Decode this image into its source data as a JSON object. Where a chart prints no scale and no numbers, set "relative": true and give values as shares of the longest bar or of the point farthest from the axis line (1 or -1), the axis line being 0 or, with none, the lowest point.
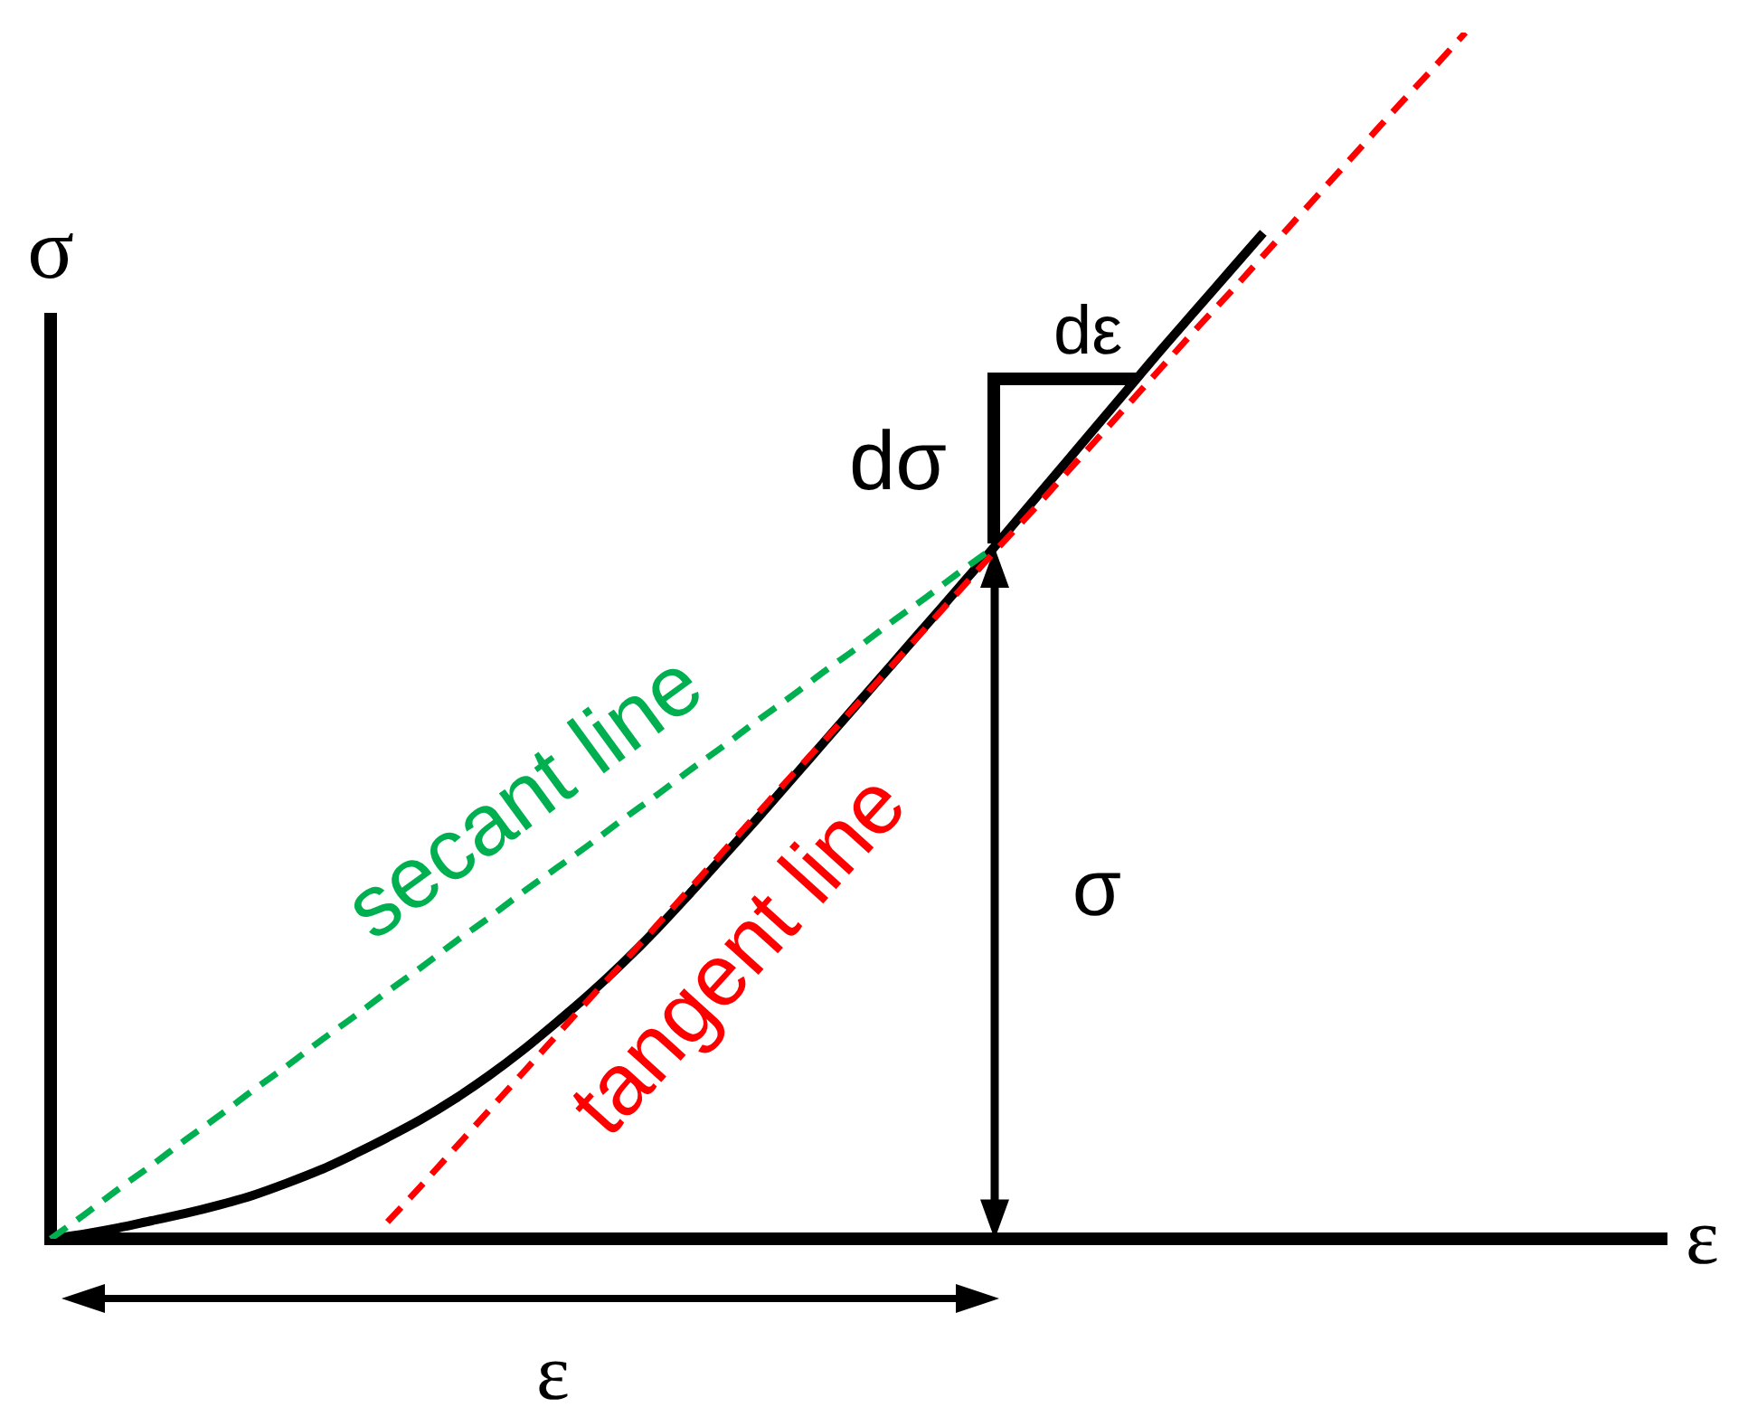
{
  "chart_data": {
    "type": "line",
    "xlabel": "ε",
    "ylabel": "σ",
    "relative": true,
    "marker": "none",
    "legend": false,
    "grid": false,
    "categories": [
      null,
      null,
      null,
      null,
      null,
      null,
      null,
      null,
      null,
      null,
      null,
      null,
      null,
      null,
      null,
      null,
      null,
      null,
      null,
      null,
      null,
      null,
      null,
      null,
      null,
      null,
      null,
      null,
      null,
      null,
      null,
      null,
      null,
      null,
      null,
      null,
      null,
      null,
      null,
      null,
      null,
      null,
      null,
      null,
      null,
      null,
      null,
      null,
      null
    ],
    "series": [
      {
        "color": "#000000",
        "line_style": "solid",
        "values": [
          0,
          0.004,
          0.009,
          0.015,
          0.021,
          0.028,
          0.036,
          0.046,
          0.057,
          0.07,
          0.084,
          0.099,
          0.116,
          0.135,
          0.156,
          0.179,
          0.203,
          0.229,
          0.257,
          0.287,
          0.318,
          0.349,
          0.381,
          0.413,
          0.445,
          0.477,
          0.509,
          0.541,
          0.573,
          0.606,
          0.639,
          0.672,
          0.705,
          0.738,
          0.77,
          0.802,
          0.834,
          null,
          null,
          null,
          null,
          null,
          null,
          null,
          null,
          null,
          null,
          null,
          null
        ]
      },
      {
        "name": "secant line",
        "color": "#00b050",
        "line_style": "dashed",
        "values": [
          0,
          0.02,
          0.041,
          0.061,
          0.082,
          0.102,
          0.123,
          0.143,
          0.164,
          0.184,
          0.205,
          0.225,
          0.246,
          0.266,
          0.287,
          0.307,
          0.327,
          0.348,
          0.368,
          0.389,
          0.409,
          0.43,
          0.45,
          0.471,
          0.491,
          0.512,
          0.532,
          0.553,
          0.573,
          null,
          null,
          null,
          null,
          null,
          null,
          null,
          null,
          null,
          null,
          null,
          null,
          null,
          null,
          null,
          null,
          null,
          null,
          null,
          null
        ]
      },
      {
        "name": "tangent line",
        "color": "#ff0000",
        "line_style": "dashed",
        "values": [
          null,
          null,
          null,
          null,
          null,
          null,
          null,
          null,
          null,
          null,
          0.014,
          0.044,
          0.075,
          0.106,
          0.137,
          0.168,
          0.199,
          0.229,
          0.26,
          0.291,
          0.322,
          0.353,
          0.384,
          0.414,
          0.445,
          0.476,
          0.507,
          0.538,
          0.569,
          0.599,
          0.63,
          0.661,
          0.692,
          0.723,
          0.754,
          0.784,
          0.815,
          0.846,
          0.877,
          0.908,
          0.939,
          0.969,
          1,
          null,
          null,
          null,
          null,
          null,
          null
        ]
      }
    ],
    "annotations": [
      "dσ",
      "dε",
      "σ",
      "ε"
    ]
  }
}
